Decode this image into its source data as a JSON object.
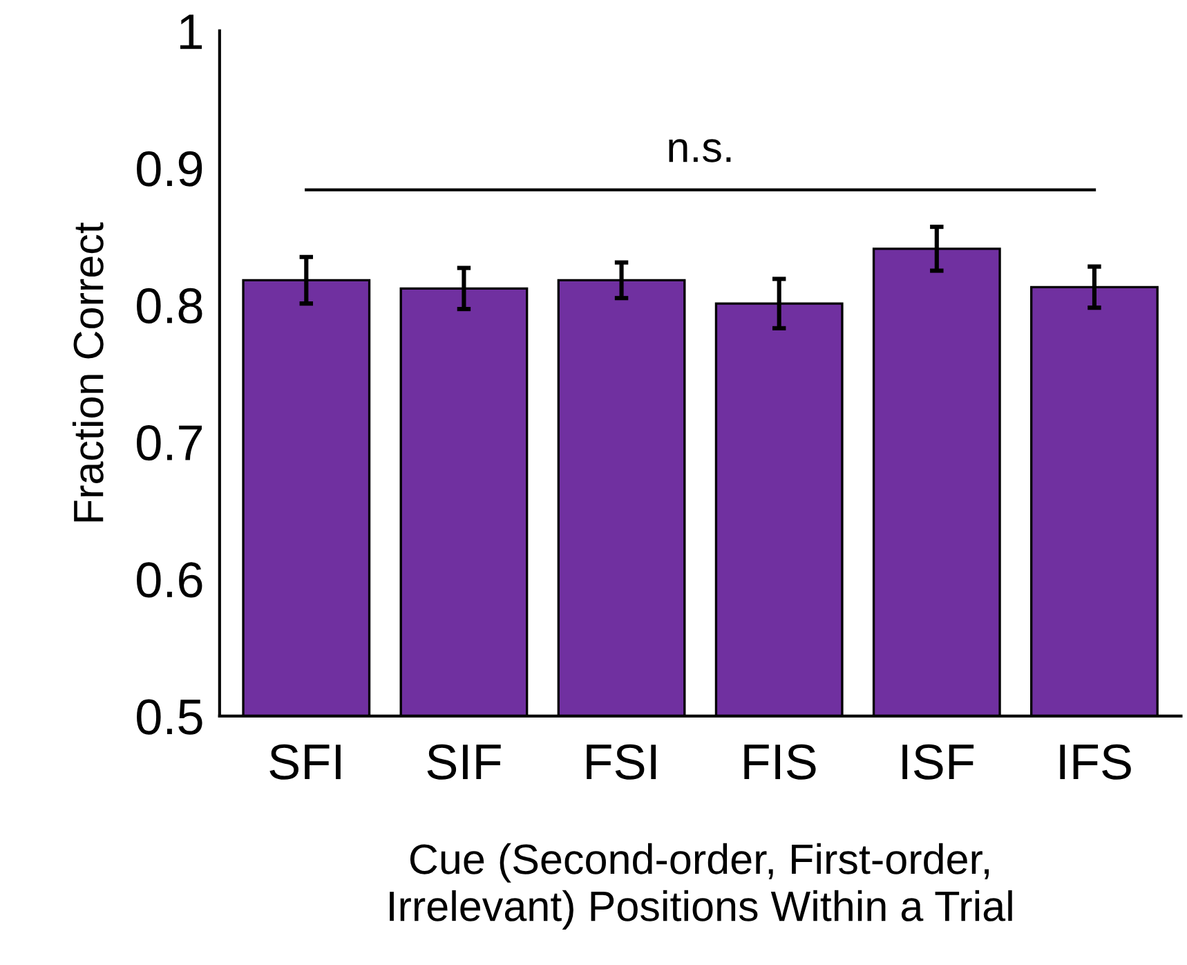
{
  "chart_data": {
    "type": "bar",
    "ylabel": "Fraction Correct",
    "xlabel": "Cue (Second-order, First-order,\nIrrelevant) Positions Within a Trial",
    "categories": [
      "SFI",
      "SIF",
      "FSI",
      "FIS",
      "ISF",
      "IFS"
    ],
    "values": [
      0.818,
      0.812,
      0.818,
      0.801,
      0.841,
      0.813
    ],
    "errors": [
      0.017,
      0.015,
      0.013,
      0.018,
      0.016,
      0.015
    ],
    "color": "#7030a0",
    "ylim": [
      0.5,
      1
    ],
    "yticks": [
      0.5,
      0.6,
      0.7,
      0.8,
      0.9,
      {
        "value": 1,
        "label": "1"
      }
    ],
    "ref_lines": [
      {
        "axis": "y",
        "value": 0.884,
        "label": "n.s.",
        "color": "#000000",
        "line_style": "solid"
      }
    ],
    "grid": false,
    "legend": false
  }
}
